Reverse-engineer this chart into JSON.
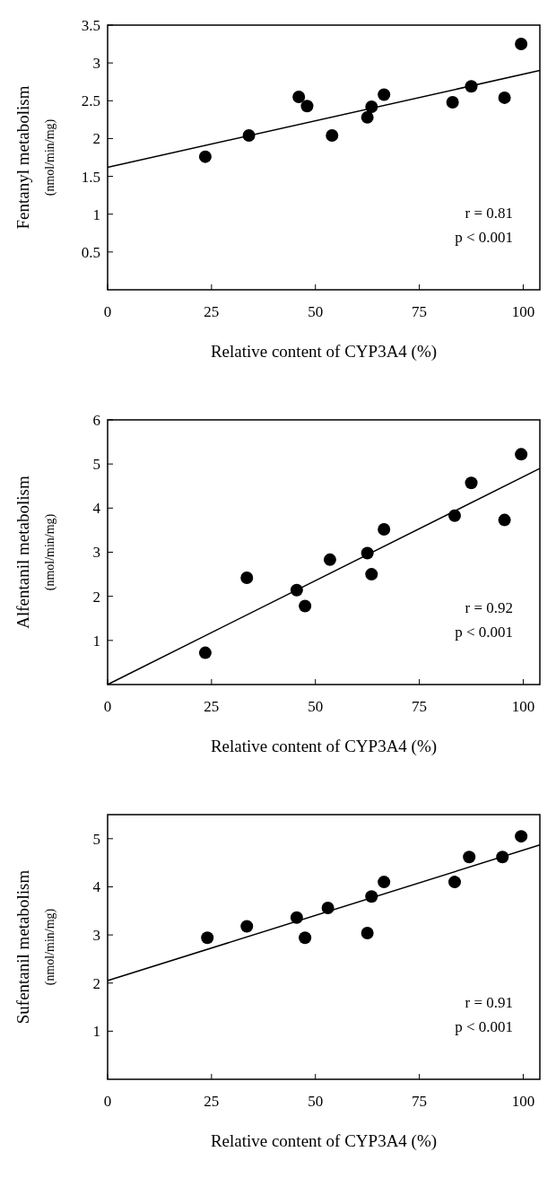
{
  "chart_data": [
    {
      "type": "scatter",
      "xlabel": "Relative content of CYP3A4 (%)",
      "ylabel": "Fentanyl metabolism",
      "subtitle": "(nmol/min/mg)",
      "xlim": [
        0,
        104
      ],
      "xticks": [
        0,
        25,
        50,
        75,
        100
      ],
      "ylim": [
        0,
        3.5
      ],
      "yticks": [
        0.5,
        1,
        1.5,
        2,
        2.5,
        3,
        3.5
      ],
      "grid": false,
      "annotations": [
        "r = 0.81",
        "p < 0.001"
      ],
      "series": [
        {
          "marker": "circle",
          "color": "#000000",
          "x": [
            23.5,
            34,
            46,
            48,
            54,
            62.5,
            63.5,
            66.5,
            83,
            87.5,
            95.5,
            99.5
          ],
          "values": [
            1.76,
            2.04,
            2.55,
            2.43,
            2.04,
            2.28,
            2.42,
            2.58,
            2.48,
            2.69,
            2.54,
            3.25
          ]
        },
        {
          "type": "line",
          "color": "#000000",
          "x": [
            0,
            104
          ],
          "values": [
            1.62,
            2.9
          ]
        }
      ]
    },
    {
      "type": "scatter",
      "xlabel": "Relative content of CYP3A4 (%)",
      "ylabel": "Alfentanil metabolism",
      "subtitle": "(nmol/min/mg)",
      "xlim": [
        0,
        104
      ],
      "xticks": [
        0,
        25,
        50,
        75,
        100
      ],
      "ylim": [
        0,
        6
      ],
      "yticks": [
        1,
        2,
        3,
        4,
        5,
        6
      ],
      "grid": false,
      "annotations": [
        "r = 0.92",
        "p < 0.001"
      ],
      "series": [
        {
          "marker": "circle",
          "color": "#000000",
          "x": [
            23.5,
            33.5,
            45.5,
            47.5,
            53.5,
            62.5,
            63.5,
            66.5,
            83.5,
            87.5,
            95.5,
            99.5
          ],
          "values": [
            0.72,
            2.42,
            2.14,
            1.78,
            2.83,
            2.98,
            2.5,
            3.52,
            3.83,
            4.57,
            3.73,
            5.22
          ]
        },
        {
          "type": "line",
          "color": "#000000",
          "x": [
            0,
            104
          ],
          "values": [
            0,
            4.9
          ]
        }
      ]
    },
    {
      "type": "scatter",
      "xlabel": "Relative content of CYP3A4 (%)",
      "ylabel": "Sufentanil metabolism",
      "subtitle": "(nmol/min/mg)",
      "xlim": [
        0,
        104
      ],
      "xticks": [
        0,
        25,
        50,
        75,
        100
      ],
      "ylim": [
        0,
        5.5
      ],
      "yticks": [
        1,
        2,
        3,
        4,
        5
      ],
      "grid": false,
      "annotations": [
        "r = 0.91",
        "p < 0.001"
      ],
      "series": [
        {
          "marker": "circle",
          "color": "#000000",
          "x": [
            24,
            33.5,
            45.5,
            47.5,
            53,
            62.5,
            63.5,
            66.5,
            83.5,
            87,
            95,
            99.5
          ],
          "values": [
            2.94,
            3.18,
            3.36,
            2.94,
            3.56,
            3.04,
            3.8,
            4.1,
            4.1,
            4.62,
            4.62,
            5.05
          ]
        },
        {
          "type": "line",
          "color": "#000000",
          "x": [
            0,
            104
          ],
          "values": [
            2.05,
            4.87
          ]
        }
      ]
    }
  ]
}
